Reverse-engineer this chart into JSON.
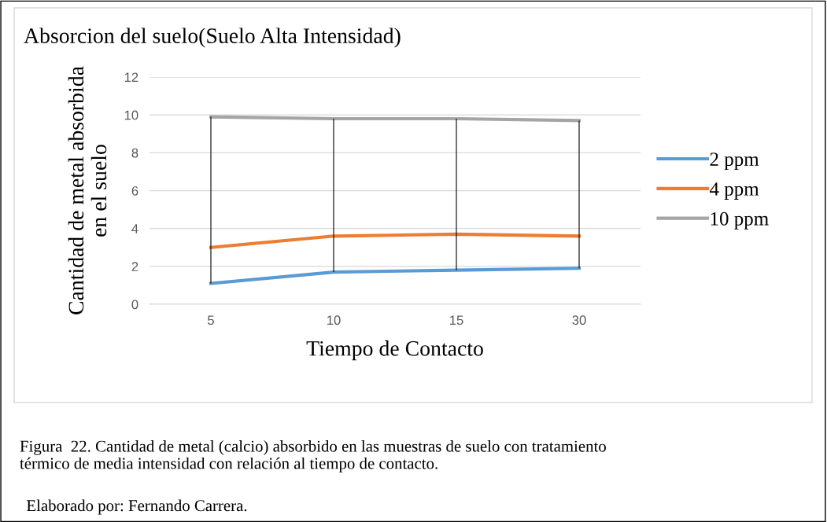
{
  "chart_data": {
    "type": "line",
    "title": "Absorcion del suelo(Suelo Alta Intensidad)",
    "xlabel": "Tiempo de Contacto",
    "ylabel": "Cantidad de metal absorbida\nen el suelo",
    "categories": [
      "5",
      "10",
      "15",
      "30"
    ],
    "series": [
      {
        "name": "2 ppm",
        "color": "#5b9bd5",
        "values": [
          1.1,
          1.7,
          1.8,
          1.9
        ],
        "errors": [
          [
            1.1,
            9.9
          ],
          [
            1.7,
            9.8
          ],
          [
            1.8,
            9.8
          ],
          [
            1.9,
            9.7
          ]
        ]
      },
      {
        "name": "4 ppm",
        "color": "#ed7d31",
        "values": [
          3.0,
          3.6,
          3.7,
          3.6
        ]
      },
      {
        "name": "10 ppm",
        "color": "#a5a5a5",
        "values": [
          9.9,
          9.8,
          9.8,
          9.7
        ]
      }
    ],
    "ylim": [
      0,
      12
    ],
    "yticks": [
      0,
      2,
      4,
      6,
      8,
      10,
      12
    ],
    "grid": "y",
    "legend": "right",
    "marker": "none",
    "annotations": [
      "Figura  22. Cantidad de metal (calcio) absorbido en las muestras de suelo con tratamiento\ntérmico de media intensidad con relación al tiempo de contacto.",
      "Elaborado por: Fernando Carrera."
    ]
  }
}
